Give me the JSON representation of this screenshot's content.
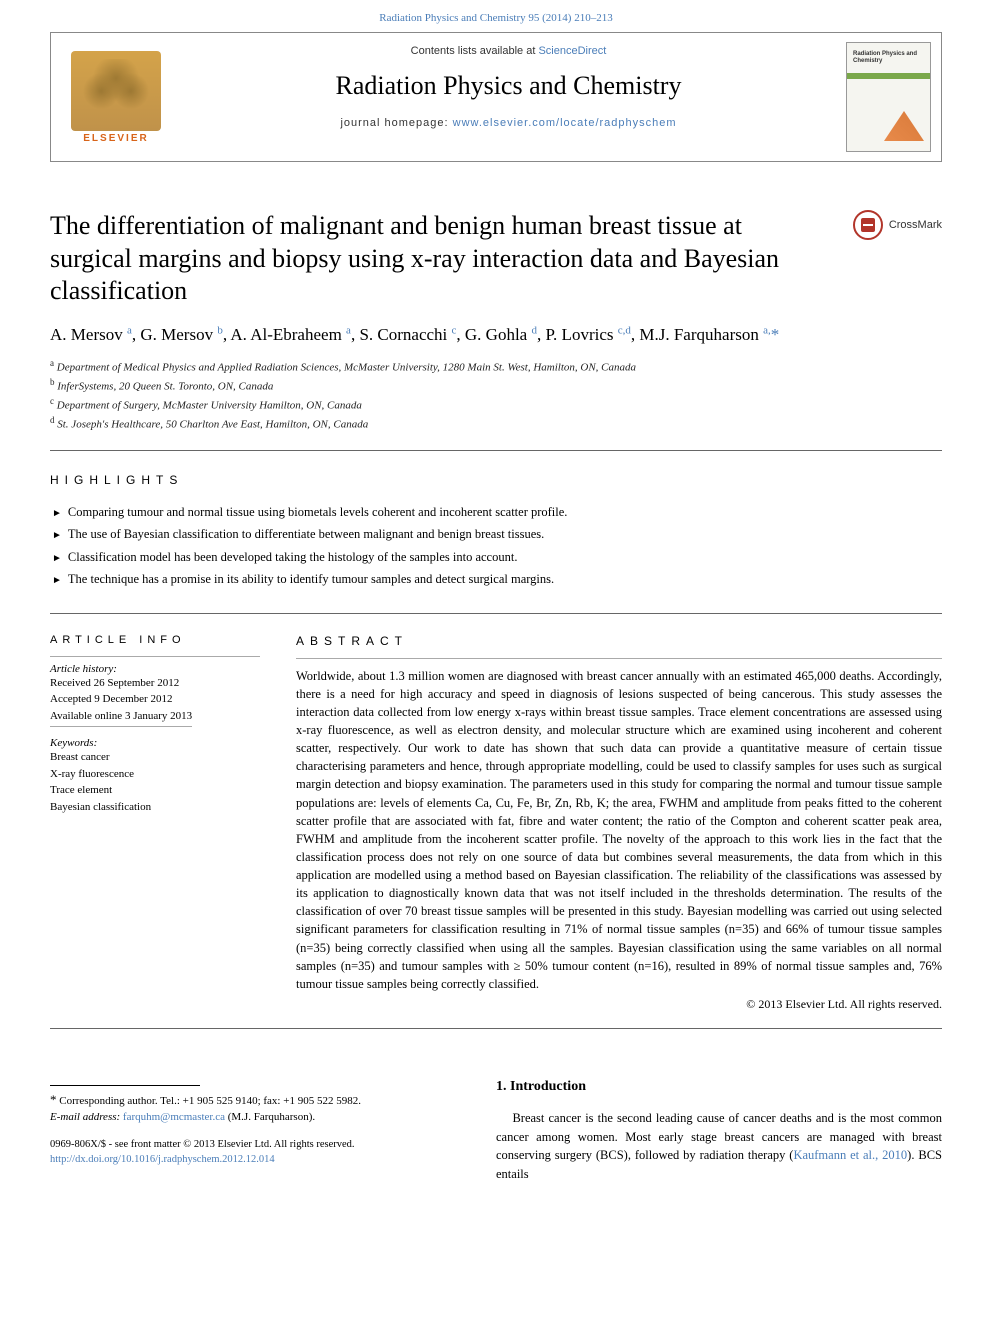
{
  "top_citation": "Radiation Physics and Chemistry 95 (2014) 210–213",
  "header": {
    "contents_prefix": "Contents lists available at ",
    "contents_link": "ScienceDirect",
    "journal_name": "Radiation Physics and Chemistry",
    "homepage_prefix": "journal homepage: ",
    "homepage_link": "www.elsevier.com/locate/radphyschem",
    "publisher": "ELSEVIER",
    "cover_title": "Radiation Physics and Chemistry"
  },
  "crossmark_label": "CrossMark",
  "title": "The differentiation of malignant and benign human breast tissue at surgical margins and biopsy using x-ray interaction data and Bayesian classification",
  "authors_html": "A. Mersov <sup>a</sup>, G. Mersov <sup>b</sup>, A. Al-Ebraheem <sup>a</sup>, S. Cornacchi <sup>c</sup>, G. Gohla <sup>d</sup>, P. Lovrics <sup>c,d</sup>, M.J. Farquharson <sup>a,</sup><span class='star'>*</span>",
  "affiliations": [
    {
      "sup": "a",
      "text": "Department of Medical Physics and Applied Radiation Sciences, McMaster University, 1280 Main St. West, Hamilton, ON, Canada"
    },
    {
      "sup": "b",
      "text": "InferSystems, 20 Queen St. Toronto, ON, Canada"
    },
    {
      "sup": "c",
      "text": "Department of Surgery, McMaster University Hamilton, ON, Canada"
    },
    {
      "sup": "d",
      "text": "St. Joseph's Healthcare, 50 Charlton Ave East, Hamilton, ON, Canada"
    }
  ],
  "highlights_head": "HIGHLIGHTS",
  "highlights": [
    "Comparing tumour and normal tissue using biometals levels coherent and incoherent scatter profile.",
    "The use of Bayesian classification to differentiate between malignant and benign breast tissues.",
    "Classification model has been developed taking the histology of the samples into account.",
    "The technique has a promise in its ability to identify tumour samples and detect surgical margins."
  ],
  "article_info_head": "ARTICLE INFO",
  "abstract_head": "ABSTRACT",
  "history_label": "Article history:",
  "history": {
    "received": "Received 26 September 2012",
    "accepted": "Accepted 9 December 2012",
    "online": "Available online 3 January 2013"
  },
  "keywords_label": "Keywords:",
  "keywords": [
    "Breast cancer",
    "X-ray fluorescence",
    "Trace element",
    "Bayesian classification"
  ],
  "abstract": "Worldwide, about 1.3 million women are diagnosed with breast cancer annually with an estimated 465,000 deaths. Accordingly, there is a need for high accuracy and speed in diagnosis of lesions suspected of being cancerous. This study assesses the interaction data collected from low energy x-rays within breast tissue samples. Trace element concentrations are assessed using x-ray fluorescence, as well as electron density, and molecular structure which are examined using incoherent and coherent scatter, respectively. Our work to date has shown that such data can provide a quantitative measure of certain tissue characterising parameters and hence, through appropriate modelling, could be used to classify samples for uses such as surgical margin detection and biopsy examination. The parameters used in this study for comparing the normal and tumour tissue sample populations are: levels of elements Ca, Cu, Fe, Br, Zn, Rb, K; the area, FWHM and amplitude from peaks fitted to the coherent scatter profile that are associated with fat, fibre and water content; the ratio of the Compton and coherent scatter peak area, FWHM and amplitude from the incoherent scatter profile. The novelty of the approach to this work lies in the fact that the classification process does not rely on one source of data but combines several measurements, the data from which in this application are modelled using a method based on Bayesian classification. The reliability of the classifications was assessed by its application to diagnostically known data that was not itself included in the thresholds determination. The results of the classification of over 70 breast tissue samples will be presented in this study. Bayesian modelling was carried out using selected significant parameters for classification resulting in 71% of normal tissue samples (n=35) and 66% of tumour tissue samples (n=35) being correctly classified when using all the samples. Bayesian classification using the same variables on all normal samples (n=35) and tumour samples with ≥ 50% tumour content (n=16), resulted in 89% of normal tissue samples and, 76% tumour tissue samples being correctly classified.",
  "copyright": "© 2013 Elsevier Ltd. All rights reserved.",
  "intro_head": "1.  Introduction",
  "intro_text_prefix": "Breast cancer is the second leading cause of cancer deaths and is the most common cancer among women. Most early stage breast cancers are managed with breast conserving surgery (BCS), followed by radiation therapy (",
  "intro_ref": "Kaufmann et al., 2010",
  "intro_text_suffix": "). BCS entails",
  "footnote": {
    "corr_label": "Corresponding author. Tel.: +1 905 525 9140; fax: +1 905 522 5982.",
    "email_label": "E-mail address:",
    "email": "farquhm@mcmaster.ca",
    "email_name": "(M.J. Farquharson)."
  },
  "issn": "0969-806X/$ - see front matter © 2013 Elsevier Ltd. All rights reserved.",
  "doi": "http://dx.doi.org/10.1016/j.radphyschem.2012.12.014",
  "colors": {
    "link": "#4a7db8",
    "elsevier_orange": "#d8641a",
    "crossmark_red": "#b2352a"
  }
}
